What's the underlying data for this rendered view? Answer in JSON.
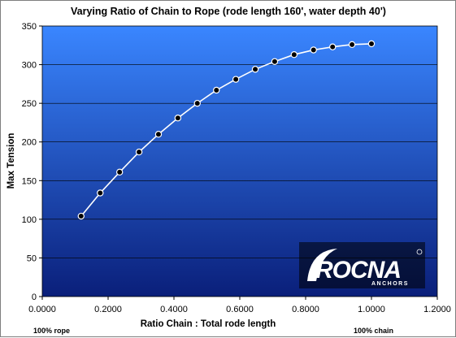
{
  "chart_data": {
    "type": "line",
    "title": "Varying Ratio of Chain to Rope (rode length 160', water depth 40')",
    "xlabel": "Ratio Chain : Total rode length",
    "ylabel": "Max Tension",
    "xlim": [
      0,
      1.2
    ],
    "ylim": [
      0,
      350
    ],
    "xticks": [
      0,
      0.2,
      0.4,
      0.6,
      0.8,
      1.0,
      1.2
    ],
    "xtick_labels": [
      "0.0000",
      "0.2000",
      "0.4000",
      "0.6000",
      "0.8000",
      "1.0000",
      "1.2000"
    ],
    "yticks": [
      0,
      50,
      100,
      150,
      200,
      250,
      300,
      350
    ],
    "ytick_labels": [
      "0",
      "50",
      "100",
      "150",
      "200",
      "250",
      "300",
      "350"
    ],
    "grid": "horizontal",
    "legend": "none",
    "series": [
      {
        "x": [
          0.118,
          0.176,
          0.235,
          0.294,
          0.353,
          0.412,
          0.471,
          0.529,
          0.588,
          0.647,
          0.706,
          0.765,
          0.824,
          0.882,
          0.941,
          1.0
        ],
        "y": [
          104,
          134,
          161,
          187,
          210,
          231,
          250,
          267,
          281,
          294,
          304,
          313,
          319,
          323,
          326,
          327
        ],
        "color": "#ffffff",
        "marker": "circle"
      }
    ],
    "annotations": {
      "left_note": "100% rope",
      "right_note": "100% chain"
    },
    "colors": {
      "plot_top": "#3a86ff",
      "plot_bottom": "#0a1f7a",
      "line": "#ffffff",
      "marker": "#000000",
      "gridline": "#000000"
    }
  },
  "logo": {
    "word": "ROCNA",
    "sub": "ANCHORS",
    "mark": "registered-mark"
  }
}
